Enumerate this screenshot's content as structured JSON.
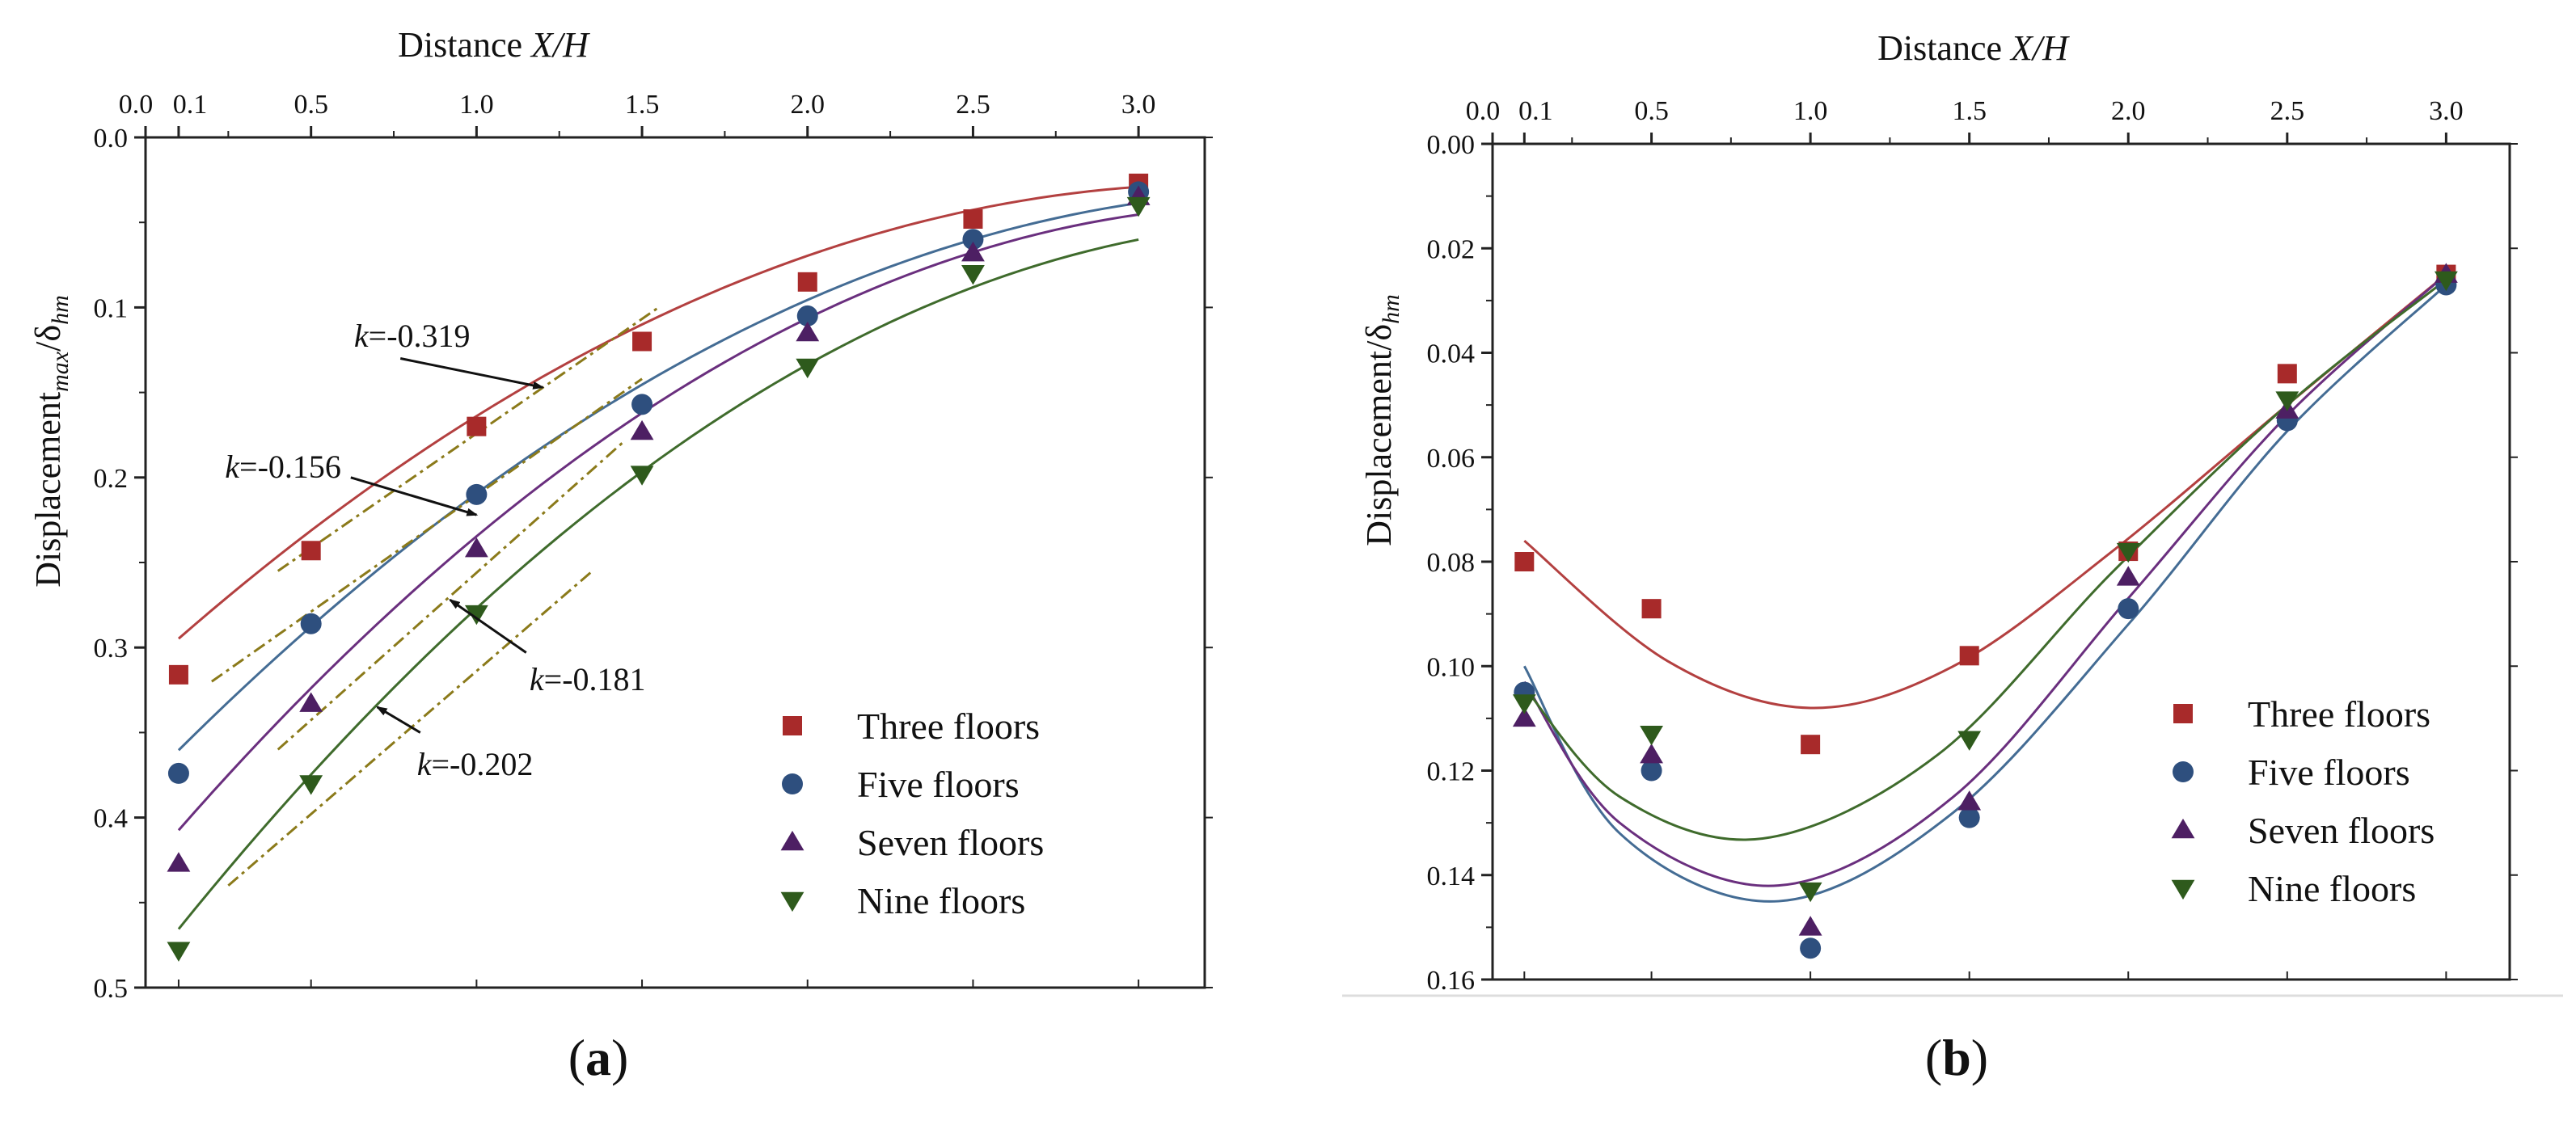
{
  "colors": {
    "three": "#a82a2a",
    "five": "#2e4f7e",
    "seven": "#4d1f63",
    "nine": "#2e5a1c",
    "fit_line_three": "#b34040",
    "fit_line_five": "#446c94",
    "fit_line_seven": "#6a2f7e",
    "fit_line_nine": "#3f6b2c",
    "tangent": "#8b7a1a",
    "axis": "#222222"
  },
  "chart_data": [
    {
      "id": "a",
      "type": "scatter",
      "caption": "a",
      "top_title_prefix": "Distance ",
      "top_title_italic": "X/H",
      "ylabel_main": "Displacement",
      "ylabel_sub": "max",
      "ylabel_slash": "/δ",
      "ylabel_sub2": "hm",
      "xlim": [
        0,
        3.2
      ],
      "ylim": [
        0.0,
        0.5
      ],
      "y_inverted": true,
      "xticks": [
        {
          "v": 0.0,
          "label": "0.0"
        },
        {
          "v": 0.1,
          "label": "0.1"
        },
        {
          "v": 0.5,
          "label": "0.5"
        },
        {
          "v": 1.0,
          "label": "1.0"
        },
        {
          "v": 1.5,
          "label": "1.5"
        },
        {
          "v": 2.0,
          "label": "2.0"
        },
        {
          "v": 2.5,
          "label": "2.5"
        },
        {
          "v": 3.0,
          "label": "3.0"
        }
      ],
      "yticks": [
        {
          "v": 0.0,
          "label": "0.0"
        },
        {
          "v": 0.1,
          "label": "0.1"
        },
        {
          "v": 0.2,
          "label": "0.2"
        },
        {
          "v": 0.3,
          "label": "0.3"
        },
        {
          "v": 0.4,
          "label": "0.4"
        },
        {
          "v": 0.5,
          "label": "0.5"
        }
      ],
      "series": [
        {
          "key": "three",
          "name": "Three floors",
          "marker": "square",
          "x": [
            0.1,
            0.5,
            1.0,
            1.5,
            2.0,
            2.5,
            3.0
          ],
          "y": [
            0.316,
            0.243,
            0.17,
            0.12,
            0.085,
            0.048,
            0.027
          ],
          "fit": [
            0.312,
            -0.175,
            0.0269
          ]
        },
        {
          "key": "five",
          "name": "Five floors",
          "marker": "circle",
          "x": [
            0.1,
            0.5,
            1.0,
            1.5,
            2.0,
            2.5,
            3.0
          ],
          "y": [
            0.374,
            0.286,
            0.21,
            0.157,
            0.105,
            0.06,
            0.032
          ],
          "fit": [
            0.38,
            -0.199,
            0.0284
          ]
        },
        {
          "key": "seven",
          "name": "Seven floors",
          "marker": "triangle-up",
          "x": [
            0.1,
            0.5,
            1.0,
            1.5,
            2.0,
            2.5,
            3.0
          ],
          "y": [
            0.427,
            0.333,
            0.242,
            0.173,
            0.115,
            0.068,
            0.035
          ],
          "fit": [
            0.43,
            -0.229,
            0.0336
          ]
        },
        {
          "key": "nine",
          "name": "Nine floors",
          "marker": "triangle-down",
          "x": [
            0.1,
            0.5,
            1.0,
            1.5,
            2.0,
            2.5,
            3.0
          ],
          "y": [
            0.478,
            0.38,
            0.28,
            0.198,
            0.135,
            0.08,
            0.04
          ],
          "fit": [
            0.49,
            -0.248,
            0.0349
          ]
        }
      ],
      "tangents": [
        {
          "key": "three",
          "x": [
            0.4,
            1.55
          ],
          "y": [
            0.255,
            0.1
          ]
        },
        {
          "key": "five",
          "x": [
            0.2,
            1.5
          ],
          "y": [
            0.32,
            0.142
          ]
        },
        {
          "key": "seven",
          "x": [
            0.4,
            1.45
          ],
          "y": [
            0.36,
            0.178
          ]
        },
        {
          "key": "nine",
          "x": [
            0.25,
            1.35
          ],
          "y": [
            0.44,
            0.255
          ]
        }
      ],
      "annotations": [
        {
          "k": "k",
          "text": "=-0.319",
          "tx": 0.63,
          "ty": 0.123,
          "ax": 0.77,
          "ay": 0.13,
          "bx": 1.2,
          "by": 0.147
        },
        {
          "k": "k",
          "text": "=-0.156",
          "tx": 0.24,
          "ty": 0.2,
          "ax": 0.62,
          "ay": 0.2,
          "bx": 1.0,
          "by": 0.222
        },
        {
          "k": "k",
          "text": "=-0.181",
          "tx": 1.16,
          "ty": 0.325,
          "ax": 1.15,
          "ay": 0.303,
          "bx": 0.92,
          "by": 0.272
        },
        {
          "k": "k",
          "text": "=-0.202",
          "tx": 0.82,
          "ty": 0.375,
          "ax": 0.83,
          "ay": 0.35,
          "bx": 0.7,
          "by": 0.335
        }
      ],
      "legend_position": "bottom-right"
    },
    {
      "id": "b",
      "type": "scatter",
      "caption": "b",
      "top_title_prefix": "Distance ",
      "top_title_italic": "X/H",
      "ylabel_main": "Displacement",
      "ylabel_sub": "",
      "ylabel_slash": "/δ",
      "ylabel_sub2": "hm",
      "xlim": [
        0,
        3.2
      ],
      "ylim": [
        0.0,
        0.16
      ],
      "y_inverted": true,
      "xticks": [
        {
          "v": 0.0,
          "label": "0.0"
        },
        {
          "v": 0.1,
          "label": "0.1"
        },
        {
          "v": 0.5,
          "label": "0.5"
        },
        {
          "v": 1.0,
          "label": "1.0"
        },
        {
          "v": 1.5,
          "label": "1.5"
        },
        {
          "v": 2.0,
          "label": "2.0"
        },
        {
          "v": 2.5,
          "label": "2.5"
        },
        {
          "v": 3.0,
          "label": "3.0"
        }
      ],
      "yticks": [
        {
          "v": 0.0,
          "label": "0.00"
        },
        {
          "v": 0.02,
          "label": "0.02"
        },
        {
          "v": 0.04,
          "label": "0.04"
        },
        {
          "v": 0.06,
          "label": "0.06"
        },
        {
          "v": 0.08,
          "label": "0.08"
        },
        {
          "v": 0.1,
          "label": "0.10"
        },
        {
          "v": 0.12,
          "label": "0.12"
        },
        {
          "v": 0.14,
          "label": "0.14"
        },
        {
          "v": 0.16,
          "label": "0.16"
        }
      ],
      "series": [
        {
          "key": "three",
          "name": "Three floors",
          "marker": "square",
          "x": [
            0.1,
            0.5,
            1.0,
            1.5,
            2.0,
            2.5,
            3.0
          ],
          "y": [
            0.08,
            0.089,
            0.115,
            0.098,
            0.078,
            0.044,
            0.025
          ],
          "curve_x": [
            0.1,
            0.55,
            1.0,
            1.45,
            1.95,
            2.5,
            3.0
          ],
          "curve_y": [
            0.076,
            0.099,
            0.108,
            0.1,
            0.078,
            0.05,
            0.025
          ]
        },
        {
          "key": "five",
          "name": "Five floors",
          "marker": "circle",
          "x": [
            0.1,
            0.5,
            1.0,
            1.5,
            2.0,
            2.5,
            3.0
          ],
          "y": [
            0.105,
            0.12,
            0.154,
            0.129,
            0.089,
            0.053,
            0.027
          ],
          "curve_x": [
            0.1,
            0.4,
            0.9,
            1.45,
            2.0,
            2.5,
            3.0
          ],
          "curve_y": [
            0.1,
            0.132,
            0.145,
            0.128,
            0.092,
            0.055,
            0.027
          ]
        },
        {
          "key": "seven",
          "name": "Seven floors",
          "marker": "triangle-up",
          "x": [
            0.1,
            0.5,
            1.0,
            1.5,
            2.0,
            2.5,
            3.0
          ],
          "y": [
            0.11,
            0.117,
            0.15,
            0.126,
            0.083,
            0.051,
            0.025
          ],
          "curve_x": [
            0.1,
            0.4,
            0.9,
            1.45,
            2.0,
            2.5,
            3.0
          ],
          "curve_y": [
            0.103,
            0.13,
            0.142,
            0.125,
            0.087,
            0.052,
            0.025
          ]
        },
        {
          "key": "nine",
          "name": "Nine floors",
          "marker": "triangle-down",
          "x": [
            0.1,
            0.5,
            1.0,
            1.5,
            2.0,
            2.5,
            3.0
          ],
          "y": [
            0.107,
            0.113,
            0.143,
            0.114,
            0.078,
            0.049,
            0.026
          ],
          "curve_x": [
            0.1,
            0.4,
            0.85,
            1.4,
            1.95,
            2.5,
            3.0
          ],
          "curve_y": [
            0.104,
            0.125,
            0.133,
            0.117,
            0.082,
            0.05,
            0.026
          ]
        }
      ],
      "legend_position": "bottom-right"
    }
  ]
}
